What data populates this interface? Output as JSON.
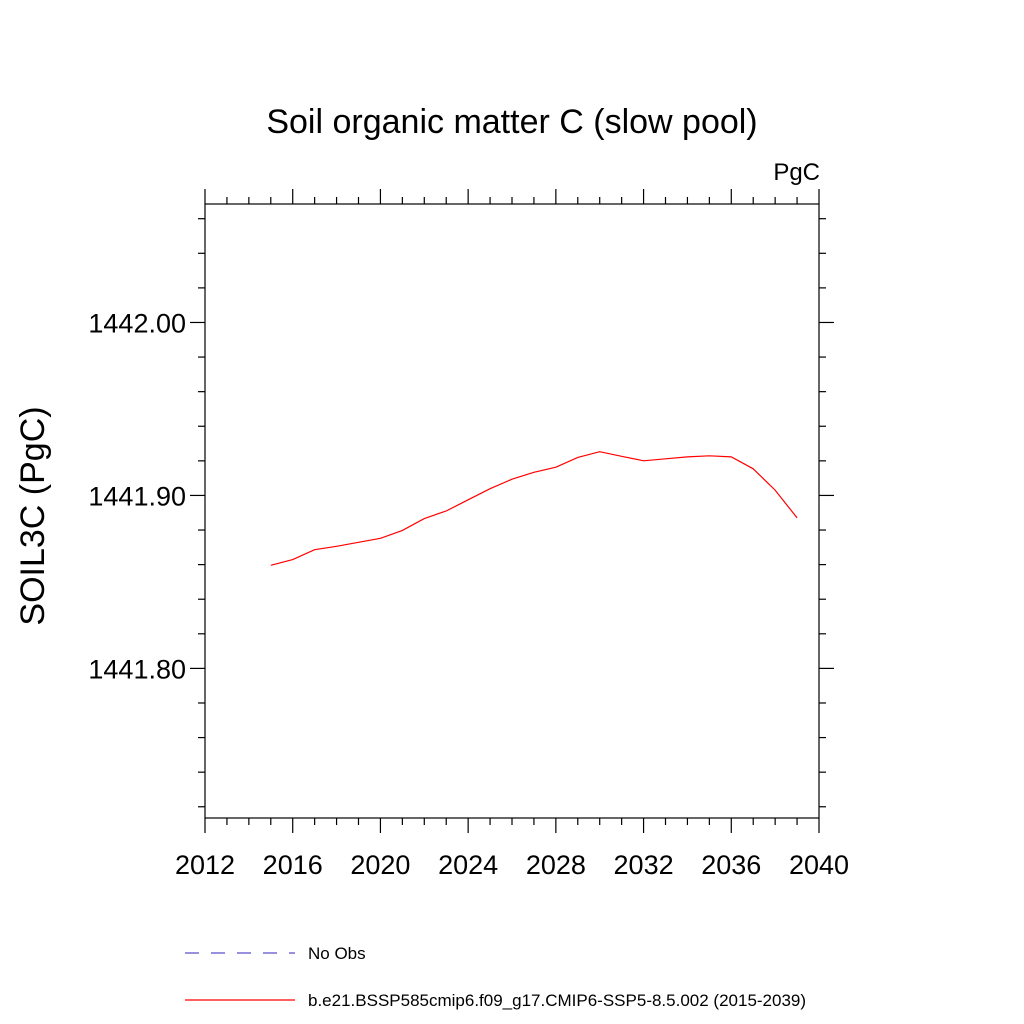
{
  "chart_data": {
    "type": "line",
    "title": "Soil organic matter C (slow pool)",
    "units": "PgC",
    "ylabel": "SOIL3C  (PgC)",
    "xlabel": "",
    "xlim": [
      2012,
      2040
    ],
    "ylim": [
      1441.7135,
      1442.0685
    ],
    "x_ticks": [
      2012,
      2016,
      2020,
      2024,
      2028,
      2032,
      2036,
      2040
    ],
    "x_tick_labels": [
      "2012",
      "2016",
      "2020",
      "2024",
      "2028",
      "2032",
      "2036",
      "2040"
    ],
    "y_ticks": [
      1441.8,
      1441.9,
      1442.0
    ],
    "y_tick_labels": [
      "1441.80",
      "1441.90",
      "1442.00"
    ],
    "y_minor_step": 0.02,
    "x_minor_step": 1,
    "grid": false,
    "legend_position": "bottom",
    "series": [
      {
        "name": "b.e21.BSSP585cmip6.f09_g17.CMIP6-SSP5-8.5.002 (2015-2039)",
        "color": "#ff0000",
        "style": "solid",
        "x": [
          2015,
          2016,
          2017,
          2018,
          2019,
          2020,
          2021,
          2022,
          2023,
          2024,
          2025,
          2026,
          2027,
          2028,
          2029,
          2030,
          2031,
          2032,
          2033,
          2034,
          2035,
          2036,
          2037,
          2038,
          2039
        ],
        "y": [
          1441.8596,
          1441.8629,
          1441.8686,
          1441.8706,
          1441.8729,
          1441.8752,
          1441.8798,
          1441.8866,
          1441.891,
          1441.8975,
          1441.9039,
          1441.9094,
          1441.9134,
          1441.9163,
          1441.922,
          1441.9253,
          1441.9226,
          1441.92,
          1441.9212,
          1441.9223,
          1441.9229,
          1441.9223,
          1441.9154,
          1441.9031,
          1441.887
        ]
      }
    ],
    "legend": [
      {
        "label": "No Obs",
        "color": "#5b4fc9",
        "style": "dashed"
      },
      {
        "label": "b.e21.BSSP585cmip6.f09_g17.CMIP6-SSP5-8.5.002 (2015-2039)",
        "color": "#ff0000",
        "style": "solid"
      }
    ]
  }
}
